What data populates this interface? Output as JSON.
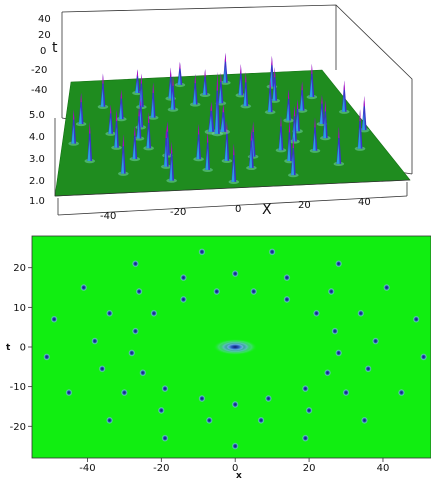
{
  "chart_data": [
    {
      "type": "surface",
      "xlabel": "X",
      "ylabel": "t",
      "x_ticks": [
        "-40",
        "-20",
        "0",
        "20",
        "40"
      ],
      "t_ticks": [
        "40",
        "20",
        "0",
        "-20",
        "-40"
      ],
      "z_ticks": [
        "5.0",
        "4.0",
        "3.0",
        "2.0",
        "1.0"
      ],
      "colors": {
        "plane": "#1f8c1f",
        "peak_low": "#27b3e6",
        "peak_mid": "#3a35c9",
        "peak_high": "#c000c0",
        "box": "#333333"
      }
    },
    {
      "type": "heatmap",
      "xlabel": "x",
      "ylabel": "t",
      "xlim": [
        -55,
        53
      ],
      "ylim": [
        -28,
        28
      ],
      "x_ticks": [
        -40,
        -20,
        0,
        20,
        40
      ],
      "y_ticks": [
        20,
        10,
        0,
        -10,
        -20
      ],
      "colors": {
        "background": "#11ee11",
        "peak": "#1b2b8a",
        "halo": "#5ab4f0"
      },
      "central_peak": {
        "x": 0,
        "t": 0
      },
      "peaks": [
        {
          "x": -9,
          "t": 24
        },
        {
          "x": 10,
          "t": 24
        },
        {
          "x": -27,
          "t": 21
        },
        {
          "x": 28,
          "t": 21
        },
        {
          "x": 0,
          "t": 18.5
        },
        {
          "x": -14,
          "t": 17.5
        },
        {
          "x": 14,
          "t": 17.5
        },
        {
          "x": -41,
          "t": 15
        },
        {
          "x": 41,
          "t": 15
        },
        {
          "x": -26,
          "t": 14
        },
        {
          "x": -5,
          "t": 14
        },
        {
          "x": 5,
          "t": 14
        },
        {
          "x": 26,
          "t": 14
        },
        {
          "x": -14,
          "t": 12
        },
        {
          "x": 14,
          "t": 12
        },
        {
          "x": -34,
          "t": 8.5
        },
        {
          "x": -22,
          "t": 8.5
        },
        {
          "x": 22,
          "t": 8.5
        },
        {
          "x": 34,
          "t": 8.5
        },
        {
          "x": -49,
          "t": 7
        },
        {
          "x": 49,
          "t": 7
        },
        {
          "x": -27,
          "t": 4
        },
        {
          "x": 27,
          "t": 4
        },
        {
          "x": -38,
          "t": 1.5
        },
        {
          "x": 38,
          "t": 1.5
        },
        {
          "x": -28,
          "t": -1.5
        },
        {
          "x": 28,
          "t": -1.5
        },
        {
          "x": -51,
          "t": -2.5
        },
        {
          "x": 51,
          "t": -2.5
        },
        {
          "x": -36,
          "t": -5.5
        },
        {
          "x": 36,
          "t": -5.5
        },
        {
          "x": -25,
          "t": -6.5
        },
        {
          "x": 25,
          "t": -6.5
        },
        {
          "x": -45,
          "t": -11.5
        },
        {
          "x": 45,
          "t": -11.5
        },
        {
          "x": -30,
          "t": -11.5
        },
        {
          "x": 30,
          "t": -11.5
        },
        {
          "x": -19,
          "t": -10.5
        },
        {
          "x": 19,
          "t": -10.5
        },
        {
          "x": -9,
          "t": -13
        },
        {
          "x": 9,
          "t": -13
        },
        {
          "x": 0,
          "t": -14.5
        },
        {
          "x": -20,
          "t": -16
        },
        {
          "x": 20,
          "t": -16
        },
        {
          "x": -34,
          "t": -18.5
        },
        {
          "x": -7,
          "t": -18.5
        },
        {
          "x": 7,
          "t": -18.5
        },
        {
          "x": 35,
          "t": -18.5
        },
        {
          "x": -19,
          "t": -23
        },
        {
          "x": 19,
          "t": -23
        },
        {
          "x": 0,
          "t": -25
        }
      ]
    }
  ]
}
